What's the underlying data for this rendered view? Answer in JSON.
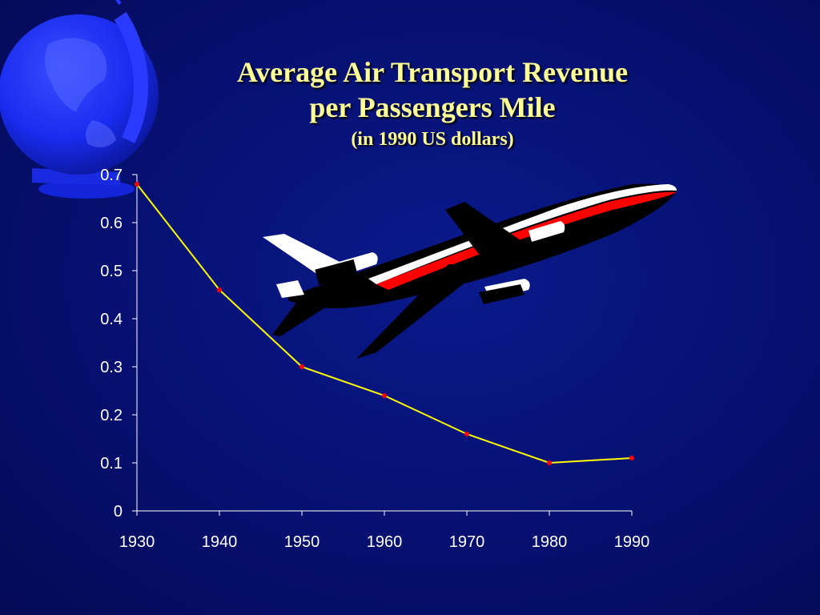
{
  "chart_data": {
    "type": "line",
    "title": "Average Air Transport Revenue",
    "title_line2": "per Passengers Mile",
    "subtitle": "(in 1990 US dollars)",
    "xlabel": "",
    "ylabel": "",
    "categories": [
      "1930",
      "1940",
      "1950",
      "1960",
      "1970",
      "1980",
      "1990"
    ],
    "values": [
      0.68,
      0.46,
      0.3,
      0.24,
      0.16,
      0.1,
      0.11
    ],
    "ylim": [
      0,
      0.7
    ],
    "yticks": [
      "0",
      "0.1",
      "0.2",
      "0.3",
      "0.4",
      "0.5",
      "0.6",
      "0.7"
    ],
    "grid": false,
    "line_color": "#ffff00",
    "marker_color": "#ff0000",
    "axis_color": "#ffffff"
  },
  "decor": {
    "globe_icon": "globe-icon",
    "airplane_icon": "airplane-icon",
    "globe_color": "#1a2cff",
    "plane_stripe_color": "#ff0000"
  }
}
